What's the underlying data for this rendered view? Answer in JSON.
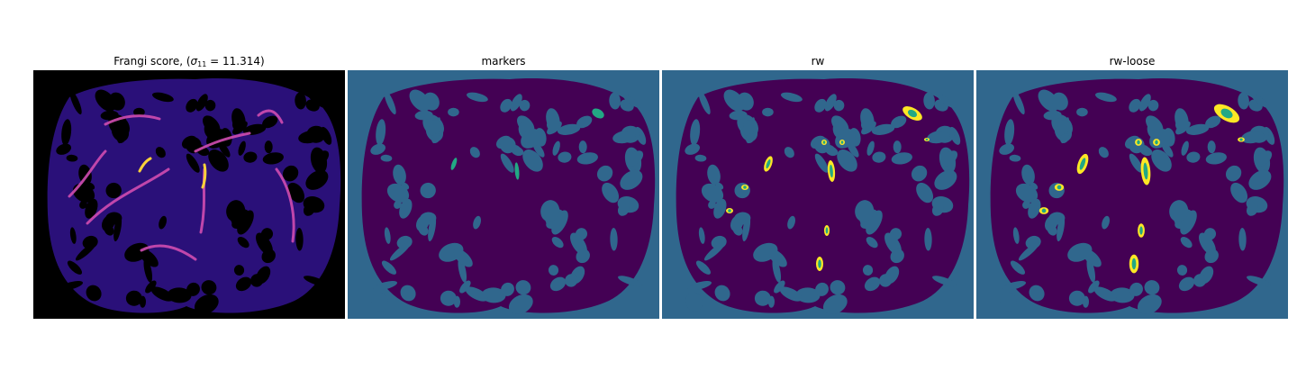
{
  "panels": [
    {
      "title_prefix": "Frangi score, (",
      "title_symbol": "σ",
      "title_subscript": "11",
      "title_suffix": " = 11.314)",
      "colormap": "magma-like"
    },
    {
      "title": "markers",
      "colormap": "viridis"
    },
    {
      "title": "rw",
      "colormap": "viridis"
    },
    {
      "title": "rw-loose",
      "colormap": "viridis"
    }
  ],
  "colors": {
    "background_frangi": "#000000",
    "tissue_frangi": "#2a1079",
    "vessel_frangi": "#d04db0",
    "vessel_peak": "#fcd23a",
    "background_label": "#30678d",
    "tissue_label": "#440154",
    "marker_label": "#22a884",
    "segment_label": "#fde725"
  }
}
